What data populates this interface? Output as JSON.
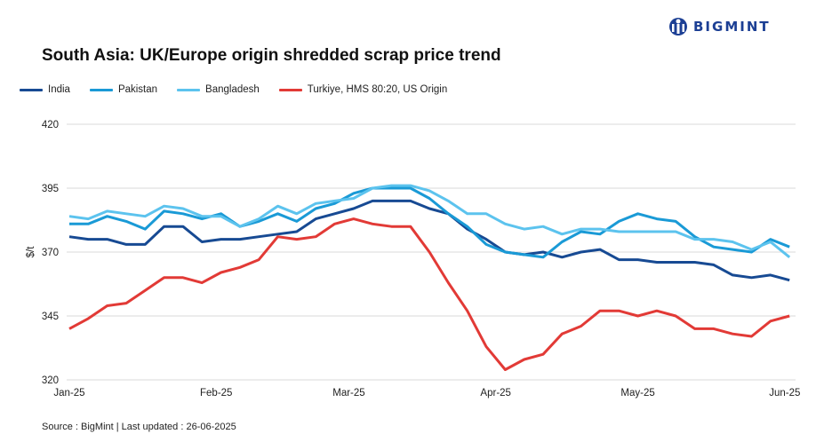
{
  "logo": {
    "text": "BIGMINT"
  },
  "chart_data": {
    "type": "line",
    "title": "South Asia: UK/Europe origin shredded scrap price trend",
    "ylabel": "$/t",
    "xlabel": "",
    "ylim": [
      320,
      420
    ],
    "yticks": [
      "420",
      "395",
      "370",
      "345",
      "320"
    ],
    "xticks": [
      {
        "label": "Jan-25",
        "date": "2025-01-01"
      },
      {
        "label": "Feb-25",
        "date": "2025-02-01"
      },
      {
        "label": "Mar-25",
        "date": "2025-03-01"
      },
      {
        "label": "Apr-25",
        "date": "2025-04-01"
      },
      {
        "label": "May-25",
        "date": "2025-05-01"
      },
      {
        "label": "Jun-25",
        "date": "2025-06-01"
      }
    ],
    "grid": "horizontal",
    "legend_position": "top-left",
    "x": [
      "2025-01-01",
      "2025-01-05",
      "2025-01-09",
      "2025-01-13",
      "2025-01-17",
      "2025-01-21",
      "2025-01-25",
      "2025-01-29",
      "2025-02-02",
      "2025-02-06",
      "2025-02-10",
      "2025-02-14",
      "2025-02-18",
      "2025-02-22",
      "2025-02-26",
      "2025-03-02",
      "2025-03-06",
      "2025-03-10",
      "2025-03-14",
      "2025-03-18",
      "2025-03-22",
      "2025-03-26",
      "2025-03-30",
      "2025-04-03",
      "2025-04-07",
      "2025-04-11",
      "2025-04-15",
      "2025-04-19",
      "2025-04-23",
      "2025-04-27",
      "2025-05-01",
      "2025-05-05",
      "2025-05-09",
      "2025-05-13",
      "2025-05-17",
      "2025-05-21",
      "2025-05-25",
      "2025-05-29",
      "2025-06-02"
    ],
    "series": [
      {
        "name": "India",
        "color": "#174a93",
        "values": [
          376,
          375,
          375,
          373,
          373,
          380,
          380,
          374,
          375,
          375,
          376,
          377,
          378,
          383,
          385,
          387,
          390,
          390,
          390,
          387,
          385,
          379,
          375,
          370,
          369,
          370,
          368,
          370,
          371,
          367,
          367,
          366,
          366,
          366,
          365,
          361,
          360,
          361,
          359
        ]
      },
      {
        "name": "Pakistan",
        "color": "#1a9ad6",
        "values": [
          381,
          381,
          384,
          382,
          379,
          386,
          385,
          383,
          385,
          380,
          382,
          385,
          382,
          387,
          389,
          393,
          395,
          395,
          395,
          391,
          385,
          380,
          373,
          370,
          369,
          368,
          374,
          378,
          377,
          382,
          385,
          383,
          382,
          376,
          372,
          371,
          370,
          375,
          372
        ]
      },
      {
        "name": "Bangladesh",
        "color": "#5cc3ee",
        "values": [
          384,
          383,
          386,
          385,
          384,
          388,
          387,
          384,
          384,
          380,
          383,
          388,
          385,
          389,
          390,
          391,
          395,
          396,
          396,
          394,
          390,
          385,
          385,
          381,
          379,
          380,
          377,
          379,
          379,
          378,
          378,
          378,
          378,
          375,
          375,
          374,
          371,
          374,
          368
        ]
      },
      {
        "name": "Turkiye, HMS 80:20, US Origin",
        "color": "#e23a36",
        "values": [
          340,
          344,
          349,
          350,
          355,
          360,
          360,
          358,
          362,
          364,
          367,
          376,
          375,
          376,
          381,
          383,
          381,
          380,
          380,
          370,
          358,
          347,
          333,
          324,
          328,
          330,
          338,
          341,
          347,
          347,
          345,
          347,
          345,
          340,
          340,
          338,
          337,
          343,
          345
        ]
      }
    ]
  },
  "footer": {
    "source": "Source : BigMint | Last updated : 26-06-2025"
  }
}
